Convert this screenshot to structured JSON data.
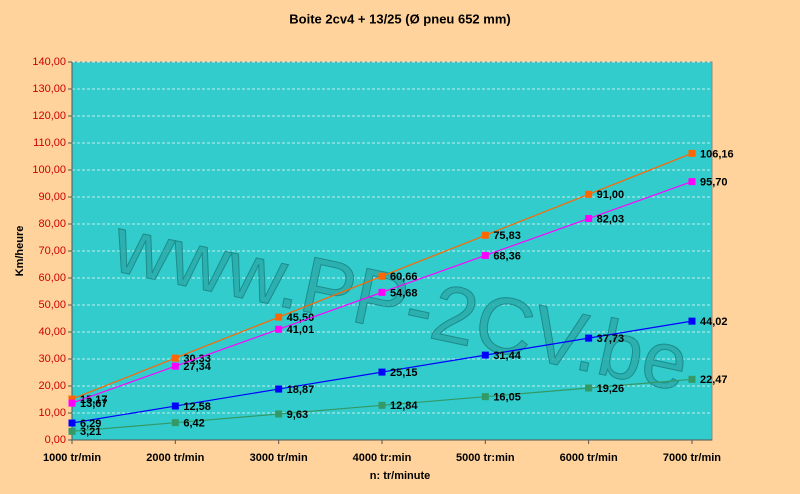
{
  "chart_data": {
    "type": "line",
    "title": "Boite 2cv4 + 13/25 (Ø pneu 652 mm)",
    "x_label": "n: tr/minute",
    "y_label": "Km/heure",
    "watermark": "www.PP-2CV.be",
    "categories": [
      "1000 tr/min",
      "2000 tr/min",
      "3000 tr/min",
      "4000 tr:min",
      "5000 tr:min",
      "6000 tr/min",
      "7000 tr/min"
    ],
    "series": [
      {
        "color": "#ff6600",
        "values": [
          15.17,
          30.33,
          45.5,
          60.66,
          75.83,
          91.0,
          106.16
        ],
        "value_labels": [
          "15,17",
          "30,33",
          "45,50",
          "60,66",
          "75,83",
          "91,00",
          "106,16"
        ]
      },
      {
        "color": "#ff00ff",
        "values": [
          13.67,
          27.34,
          41.01,
          54.68,
          68.36,
          82.03,
          95.7
        ],
        "value_labels": [
          "13,67",
          "27,34",
          "41,01",
          "54,68",
          "68,36",
          "82,03",
          "95,70"
        ]
      },
      {
        "color": "#0000ff",
        "values": [
          6.29,
          12.58,
          18.87,
          25.15,
          31.44,
          37.73,
          44.02
        ],
        "value_labels": [
          "6,29",
          "12,58",
          "18,87",
          "25,15",
          "31,44",
          "37,73",
          "44,02"
        ]
      },
      {
        "color": "#339966",
        "values": [
          3.21,
          6.42,
          9.63,
          12.84,
          16.05,
          19.26,
          22.47
        ],
        "value_labels": [
          "3,21",
          "6,42",
          "9,63",
          "12,84",
          "16,05",
          "19,26",
          "22,47"
        ]
      }
    ],
    "ylim": [
      0,
      140
    ],
    "yticks": [
      {
        "value": 0,
        "label": "0,00"
      },
      {
        "value": 10,
        "label": "10,00"
      },
      {
        "value": 20,
        "label": "20,00"
      },
      {
        "value": 30,
        "label": "30,00"
      },
      {
        "value": 40,
        "label": "40,00"
      },
      {
        "value": 50,
        "label": "50,00"
      },
      {
        "value": 60,
        "label": "60,00"
      },
      {
        "value": 70,
        "label": "70,00"
      },
      {
        "value": 80,
        "label": "80,00"
      },
      {
        "value": 90,
        "label": "90,00"
      },
      {
        "value": 100,
        "label": "100,00"
      },
      {
        "value": 110,
        "label": "110,00"
      },
      {
        "value": 120,
        "label": "120,00"
      },
      {
        "value": 130,
        "label": "130,00"
      },
      {
        "value": 140,
        "label": "140,00"
      }
    ],
    "grid": true
  }
}
